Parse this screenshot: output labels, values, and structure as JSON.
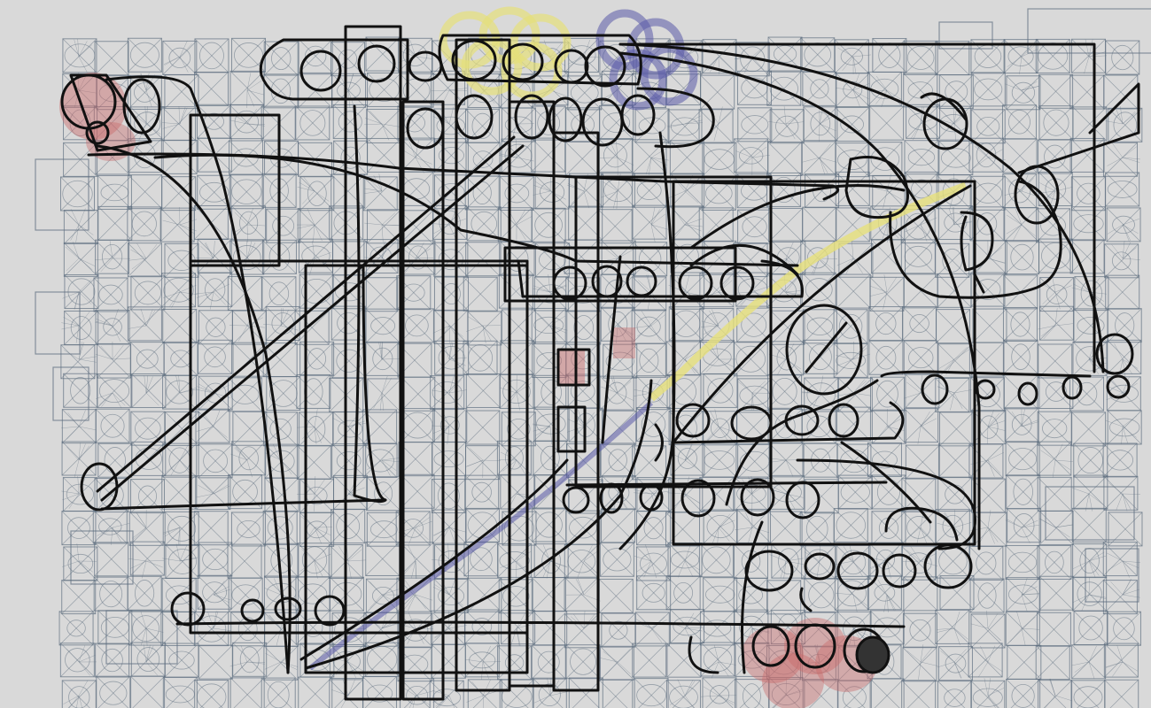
{
  "canvas": {
    "background": "#d9d9d9",
    "grid_color": "#5f6f80",
    "ink_color": "#111111",
    "highlight_colors": {
      "red": "#c96a6a",
      "yellow": "#e6e07a",
      "blue": "#5a5aa8"
    }
  },
  "icons": [
    "sketch-grid",
    "ink-circle",
    "ink-line",
    "ink-rectangle",
    "highlight-stroke"
  ]
}
